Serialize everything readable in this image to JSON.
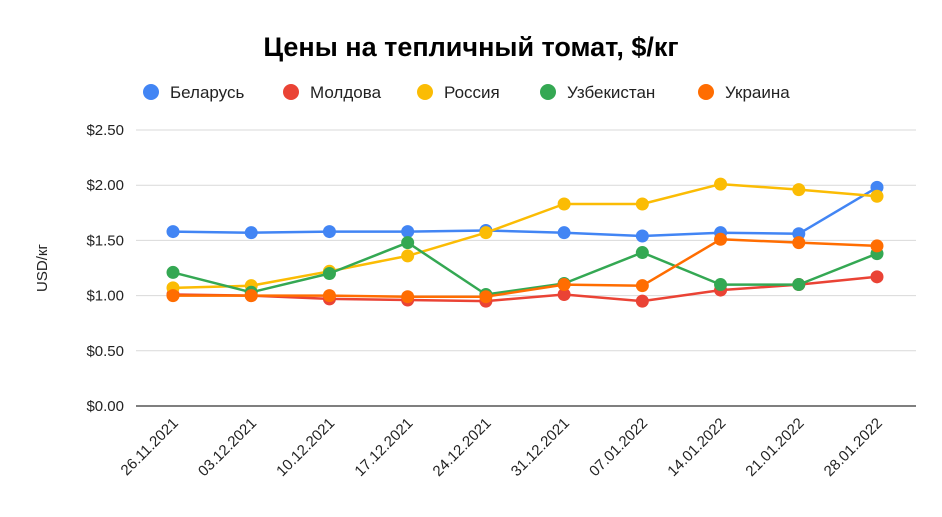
{
  "chart_data": {
    "type": "line",
    "title": "Цены на тепличный томат, $/кг",
    "xlabel": "",
    "ylabel": "USD/кг",
    "ylim": [
      0,
      2.5
    ],
    "yticks": [
      "$0.00",
      "$0.50",
      "$1.00",
      "$1.50",
      "$2.00",
      "$2.50"
    ],
    "ytick_values": [
      0,
      0.5,
      1.0,
      1.5,
      2.0,
      2.5
    ],
    "grid": true,
    "legend_position": "top",
    "categories": [
      "26.11.2021",
      "03.12.2021",
      "10.12.2021",
      "17.12.2021",
      "24.12.2021",
      "31.12.2021",
      "07.01.2022",
      "14.01.2022",
      "21.01.2022",
      "28.01.2022"
    ],
    "series": [
      {
        "name": "Беларусь",
        "color": "#4285F4",
        "values": [
          1.58,
          1.57,
          1.58,
          1.58,
          1.59,
          1.57,
          1.54,
          1.57,
          1.56,
          1.98
        ]
      },
      {
        "name": "Молдова",
        "color": "#EA4335",
        "values": [
          1.01,
          1.0,
          0.97,
          0.96,
          0.95,
          1.01,
          0.95,
          1.05,
          1.1,
          1.17
        ]
      },
      {
        "name": "Россия",
        "color": "#FBBC04",
        "values": [
          1.07,
          1.09,
          1.22,
          1.36,
          1.57,
          1.83,
          1.83,
          2.01,
          1.96,
          1.9
        ]
      },
      {
        "name": "Узбекистан",
        "color": "#34A853",
        "values": [
          1.21,
          1.03,
          1.2,
          1.48,
          1.01,
          1.11,
          1.39,
          1.1,
          1.1,
          1.38
        ]
      },
      {
        "name": "Украина",
        "color": "#FF6D01",
        "values": [
          1.0,
          1.0,
          1.0,
          0.99,
          0.99,
          1.1,
          1.09,
          1.51,
          1.48,
          1.45
        ]
      }
    ]
  }
}
